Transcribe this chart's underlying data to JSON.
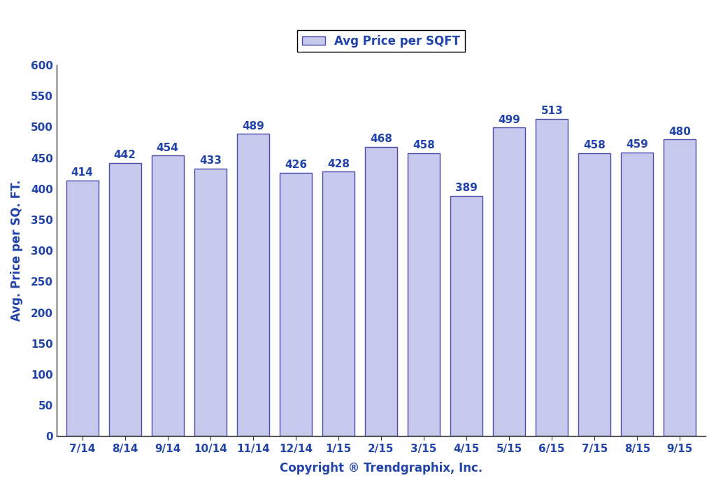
{
  "categories": [
    "7/14",
    "8/14",
    "9/14",
    "10/14",
    "11/14",
    "12/14",
    "1/15",
    "2/15",
    "3/15",
    "4/15",
    "5/15",
    "6/15",
    "7/15",
    "8/15",
    "9/15"
  ],
  "values": [
    414,
    442,
    454,
    433,
    489,
    426,
    428,
    468,
    458,
    389,
    499,
    513,
    458,
    459,
    480
  ],
  "bar_color": "#c8caed",
  "bar_edge_color": "#4a4aaa",
  "bar_edge_width": 1.0,
  "ylabel": "Avg. Price per SQ. FT.",
  "xlabel": "Copyright ® Trendgraphix, Inc.",
  "legend_label": "Avg Price per SQFT",
  "ylim": [
    0,
    600
  ],
  "yticks": [
    0,
    50,
    100,
    150,
    200,
    250,
    300,
    350,
    400,
    450,
    500,
    550,
    600
  ],
  "text_color": "#2244aa",
  "tick_fontsize": 11,
  "annotation_fontsize": 11,
  "axis_label_fontsize": 12,
  "legend_fontsize": 12,
  "background_color": "#ffffff",
  "bar_width": 0.75,
  "spine_color": "#333333"
}
